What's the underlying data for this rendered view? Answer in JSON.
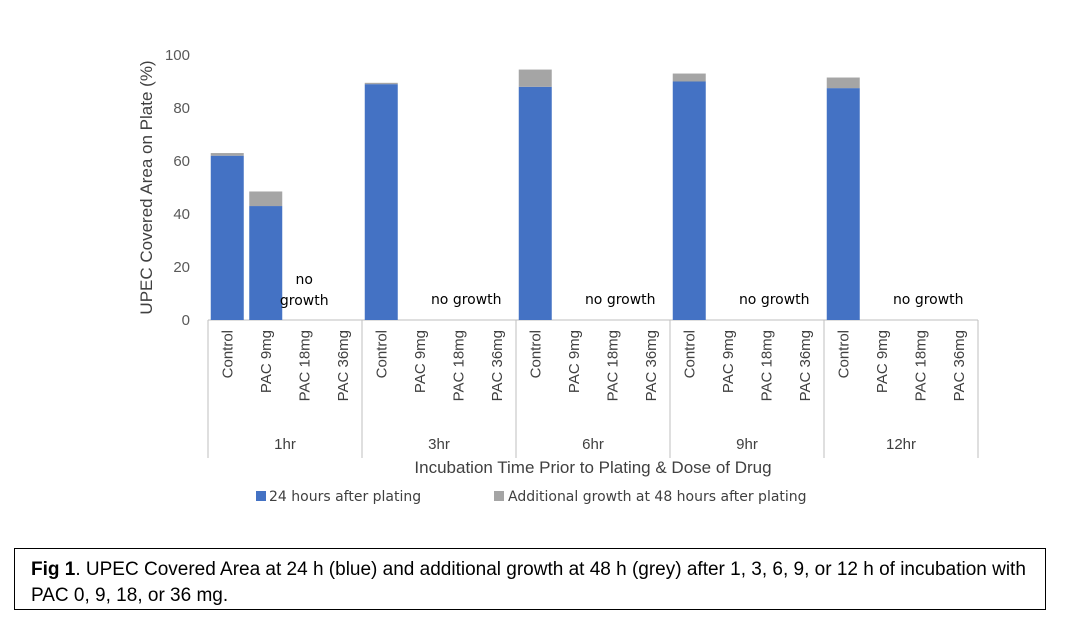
{
  "chart_data": {
    "type": "bar",
    "stacked": true,
    "ylabel": "UPEC  Covered Area on Plate  (%)",
    "xlabel": "Incubation Time Prior to Plating & Dose of Drug",
    "ylim": [
      0,
      100
    ],
    "yticks": [
      "0",
      "20",
      "40",
      "60",
      "80",
      "100"
    ],
    "grid": false,
    "legend_position": "bottom",
    "groups": [
      {
        "label": "1hr",
        "categories": [
          "Control",
          "PAC 9mg",
          "PAC 18mg",
          "PAC 36mg"
        ],
        "base": [
          62,
          43,
          0,
          0
        ],
        "extra": [
          1,
          5.5,
          0,
          0
        ],
        "annotations": [
          {
            "category_index": 2,
            "lines": [
              "no",
              "growth"
            ]
          }
        ]
      },
      {
        "label": "3hr",
        "categories": [
          "Control",
          "PAC 9mg",
          "PAC 18mg",
          "PAC 36mg"
        ],
        "base": [
          89,
          0,
          0,
          0
        ],
        "extra": [
          0.5,
          0,
          0,
          0
        ],
        "annotations": [
          {
            "category_index": 2,
            "lines": [
              "no growth"
            ]
          }
        ]
      },
      {
        "label": "6hr",
        "categories": [
          "Control",
          "PAC 9mg",
          "PAC 18mg",
          "PAC 36mg"
        ],
        "base": [
          88,
          0,
          0,
          0
        ],
        "extra": [
          6.5,
          0,
          0,
          0
        ],
        "annotations": [
          {
            "category_index": 2,
            "lines": [
              "no growth"
            ]
          }
        ]
      },
      {
        "label": "9hr",
        "categories": [
          "Control",
          "PAC 9mg",
          "PAC 18mg",
          "PAC 36mg"
        ],
        "base": [
          90,
          0,
          0,
          0
        ],
        "extra": [
          3,
          0,
          0,
          0
        ],
        "annotations": [
          {
            "category_index": 2,
            "lines": [
              "no growth"
            ]
          }
        ]
      },
      {
        "label": "12hr",
        "categories": [
          "Control",
          "PAC 9mg",
          "PAC 18mg",
          "PAC 36mg"
        ],
        "base": [
          87.5,
          0,
          0,
          0
        ],
        "extra": [
          4,
          0,
          0,
          0
        ],
        "annotations": [
          {
            "category_index": 2,
            "lines": [
              "no growth"
            ]
          }
        ]
      }
    ],
    "series": [
      {
        "name": "24 hours after plating",
        "color": "#4472C4"
      },
      {
        "name": "Additional growth at 48 hours after plating",
        "color": "#A5A5A5"
      }
    ]
  },
  "caption": {
    "label": "Fig 1",
    "text": ". UPEC Covered Area at 24 h (blue) and additional growth at 48 h (grey) after 1, 3, 6, 9, or 12 h of incubation with PAC 0, 9, 18, or 36 mg."
  }
}
